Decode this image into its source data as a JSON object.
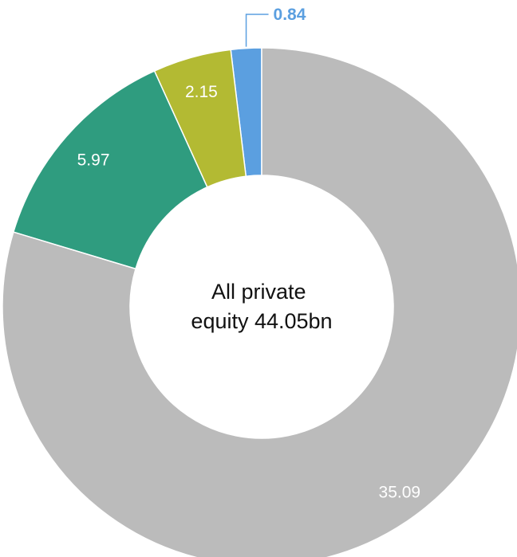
{
  "chart_data": {
    "type": "pie",
    "subtype": "donut",
    "center_label_lines": [
      "All private",
      "equity 44.05bn"
    ],
    "slices": [
      {
        "label": "0.84",
        "value": 0.84,
        "color": "#5B9FE0",
        "label_color": "#5B9FE0",
        "label_position": "outside"
      },
      {
        "label": "2.15",
        "value": 2.15,
        "color": "#B3BA33",
        "label_color": "#FFFFFF",
        "label_position": "inside"
      },
      {
        "label": "5.97",
        "value": 5.97,
        "color": "#2F9C7F",
        "label_color": "#FFFFFF",
        "label_position": "inside"
      },
      {
        "label": "35.09",
        "value": 35.09,
        "color": "#BBBBBB",
        "label_color": "#FFFFFF",
        "label_position": "inside"
      }
    ],
    "start_angle_deg": 0,
    "direction": "counterclockwise",
    "legend": "none"
  }
}
